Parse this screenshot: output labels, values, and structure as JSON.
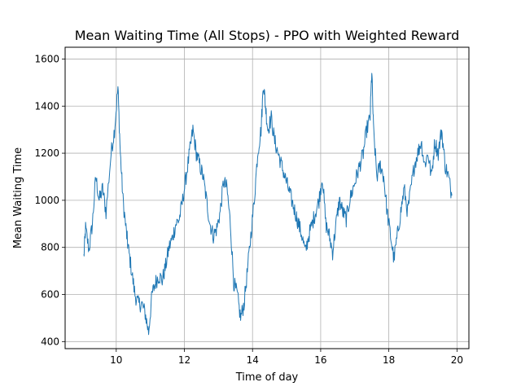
{
  "chart_data": {
    "type": "line",
    "title": "Mean Waiting Time (All Stops) - PPO with Weighted Reward",
    "xlabel": "Time of day",
    "ylabel": "Mean Waiting Time",
    "xlim": [
      8.5,
      20.35
    ],
    "ylim": [
      370,
      1650
    ],
    "xticks": [
      10,
      12,
      14,
      16,
      18,
      20
    ],
    "yticks": [
      400,
      600,
      800,
      1000,
      1200,
      1400,
      1600
    ],
    "grid": true,
    "legend": "none",
    "series": [
      {
        "color": "#1f77b4",
        "keypoints": [
          [
            9.05,
            760
          ],
          [
            9.1,
            880
          ],
          [
            9.2,
            790
          ],
          [
            9.3,
            900
          ],
          [
            9.4,
            1100
          ],
          [
            9.5,
            1000
          ],
          [
            9.6,
            1050
          ],
          [
            9.7,
            950
          ],
          [
            9.85,
            1200
          ],
          [
            9.95,
            1300
          ],
          [
            10.05,
            1480
          ],
          [
            10.12,
            1200
          ],
          [
            10.2,
            1000
          ],
          [
            10.3,
            860
          ],
          [
            10.35,
            800
          ],
          [
            10.45,
            700
          ],
          [
            10.55,
            600
          ],
          [
            10.65,
            560
          ],
          [
            10.75,
            560
          ],
          [
            10.85,
            520
          ],
          [
            10.95,
            440
          ],
          [
            11.05,
            600
          ],
          [
            11.15,
            650
          ],
          [
            11.25,
            680
          ],
          [
            11.35,
            660
          ],
          [
            11.45,
            720
          ],
          [
            11.55,
            800
          ],
          [
            11.65,
            840
          ],
          [
            11.75,
            900
          ],
          [
            11.85,
            920
          ],
          [
            11.95,
            1000
          ],
          [
            12.05,
            1100
          ],
          [
            12.15,
            1200
          ],
          [
            12.25,
            1300
          ],
          [
            12.35,
            1200
          ],
          [
            12.45,
            1150
          ],
          [
            12.55,
            1100
          ],
          [
            12.65,
            1000
          ],
          [
            12.75,
            900
          ],
          [
            12.85,
            850
          ],
          [
            12.95,
            880
          ],
          [
            13.05,
            950
          ],
          [
            13.15,
            1080
          ],
          [
            13.25,
            1050
          ],
          [
            13.35,
            900
          ],
          [
            13.45,
            650
          ],
          [
            13.55,
            600
          ],
          [
            13.65,
            500
          ],
          [
            13.75,
            560
          ],
          [
            13.85,
            700
          ],
          [
            13.95,
            850
          ],
          [
            14.05,
            1000
          ],
          [
            14.15,
            1200
          ],
          [
            14.25,
            1300
          ],
          [
            14.32,
            1500
          ],
          [
            14.38,
            1400
          ],
          [
            14.45,
            1300
          ],
          [
            14.55,
            1350
          ],
          [
            14.65,
            1250
          ],
          [
            14.75,
            1200
          ],
          [
            14.85,
            1150
          ],
          [
            14.95,
            1100
          ],
          [
            15.05,
            1050
          ],
          [
            15.15,
            1000
          ],
          [
            15.25,
            950
          ],
          [
            15.35,
            900
          ],
          [
            15.45,
            850
          ],
          [
            15.55,
            780
          ],
          [
            15.65,
            850
          ],
          [
            15.75,
            900
          ],
          [
            15.85,
            950
          ],
          [
            15.95,
            1000
          ],
          [
            16.05,
            1100
          ],
          [
            16.15,
            900
          ],
          [
            16.25,
            850
          ],
          [
            16.35,
            780
          ],
          [
            16.45,
            900
          ],
          [
            16.55,
            1000
          ],
          [
            16.65,
            950
          ],
          [
            16.75,
            920
          ],
          [
            16.85,
            1000
          ],
          [
            16.95,
            1050
          ],
          [
            17.05,
            1100
          ],
          [
            17.15,
            1150
          ],
          [
            17.25,
            1200
          ],
          [
            17.35,
            1300
          ],
          [
            17.45,
            1350
          ],
          [
            17.5,
            1550
          ],
          [
            17.55,
            1300
          ],
          [
            17.65,
            1100
          ],
          [
            17.75,
            1150
          ],
          [
            17.85,
            1100
          ],
          [
            17.95,
            950
          ],
          [
            18.05,
            850
          ],
          [
            18.15,
            750
          ],
          [
            18.25,
            850
          ],
          [
            18.35,
            950
          ],
          [
            18.45,
            1050
          ],
          [
            18.55,
            950
          ],
          [
            18.65,
            1050
          ],
          [
            18.75,
            1150
          ],
          [
            18.85,
            1200
          ],
          [
            18.95,
            1250
          ],
          [
            19.05,
            1150
          ],
          [
            19.15,
            1200
          ],
          [
            19.25,
            1100
          ],
          [
            19.35,
            1250
          ],
          [
            19.45,
            1200
          ],
          [
            19.55,
            1300
          ],
          [
            19.65,
            1150
          ],
          [
            19.75,
            1100
          ],
          [
            19.85,
            1020
          ]
        ]
      }
    ]
  }
}
